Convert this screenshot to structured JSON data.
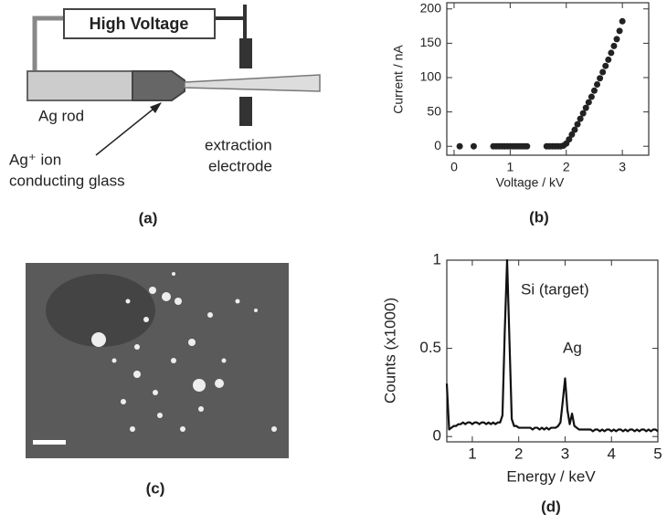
{
  "diagram": {
    "power_label": "High Voltage",
    "rod_label": "Ag rod",
    "glass_label_1": "Ag⁺ ion",
    "glass_label_2": "conducting glass",
    "electrode_label_1": "extraction",
    "electrode_label_2": "electrode",
    "caption": "(a)"
  },
  "image": {
    "caption": "(c)"
  },
  "chart_data": [
    {
      "type": "scatter",
      "caption": "(b)",
      "x_label": "Voltage / kV",
      "y_label": "Current / nA",
      "series": [
        {
          "color": "#222222",
          "x": [
            0.1,
            0.35,
            0.7,
            0.75,
            0.8,
            0.85,
            0.9,
            0.95,
            1.0,
            1.05,
            1.1,
            1.15,
            1.2,
            1.25,
            1.3,
            1.65,
            1.7,
            1.75,
            1.8,
            1.85,
            1.9,
            1.95,
            2.0,
            2.05,
            2.1,
            2.15,
            2.2,
            2.25,
            2.3,
            2.35,
            2.4,
            2.45,
            2.5,
            2.55,
            2.6,
            2.65,
            2.7,
            2.75,
            2.8,
            2.85,
            2.9,
            2.95,
            3.0
          ],
          "values": [
            0,
            0,
            0,
            0,
            0,
            0,
            0,
            0,
            0,
            0,
            0,
            0,
            0,
            0,
            0,
            0,
            0,
            0,
            0,
            0,
            0,
            1,
            4,
            10,
            17,
            24,
            32,
            40,
            48,
            56,
            64,
            72,
            81,
            90,
            99,
            108,
            117,
            126,
            136,
            146,
            156,
            168,
            182
          ]
        }
      ],
      "xlim": [
        -0.13,
        3.47
      ],
      "xticks": [
        0,
        1,
        2,
        3
      ],
      "ylim": [
        -13,
        209
      ],
      "yticks": [
        0,
        50,
        100,
        150,
        200
      ],
      "grid": false
    },
    {
      "type": "line",
      "caption": "(d)",
      "x_label": "Energy / keV",
      "y_label": "Counts (x1000)",
      "annotations": [
        "Si (target)",
        "Ag"
      ],
      "series": [
        {
          "color": "#111111",
          "x": [
            0.45,
            0.5,
            0.55,
            0.6,
            0.65,
            0.7,
            0.75,
            0.8,
            0.85,
            0.9,
            0.95,
            1.0,
            1.05,
            1.1,
            1.15,
            1.2,
            1.25,
            1.3,
            1.35,
            1.4,
            1.45,
            1.5,
            1.55,
            1.6,
            1.65,
            1.7,
            1.75,
            1.8,
            1.85,
            1.9,
            1.95,
            2.0,
            2.05,
            2.1,
            2.15,
            2.2,
            2.25,
            2.3,
            2.35,
            2.4,
            2.45,
            2.5,
            2.55,
            2.6,
            2.65,
            2.7,
            2.75,
            2.8,
            2.85,
            2.9,
            2.95,
            3.0,
            3.05,
            3.1,
            3.15,
            3.2,
            3.25,
            3.3,
            3.35,
            3.4,
            3.45,
            3.5,
            3.55,
            3.6,
            3.65,
            3.7,
            3.75,
            3.8,
            3.85,
            3.9,
            3.95,
            4.0,
            4.05,
            4.1,
            4.15,
            4.2,
            4.25,
            4.3,
            4.35,
            4.4,
            4.45,
            4.5,
            4.55,
            4.6,
            4.65,
            4.7,
            4.75,
            4.8,
            4.85,
            4.9,
            4.95,
            5.0
          ],
          "values": [
            0.3,
            0.04,
            0.05,
            0.06,
            0.06,
            0.07,
            0.07,
            0.08,
            0.07,
            0.08,
            0.08,
            0.07,
            0.08,
            0.08,
            0.07,
            0.08,
            0.08,
            0.07,
            0.08,
            0.07,
            0.08,
            0.07,
            0.08,
            0.08,
            0.12,
            0.6,
            1.0,
            0.55,
            0.1,
            0.06,
            0.06,
            0.05,
            0.05,
            0.05,
            0.05,
            0.05,
            0.05,
            0.04,
            0.05,
            0.05,
            0.04,
            0.05,
            0.04,
            0.05,
            0.04,
            0.05,
            0.05,
            0.05,
            0.06,
            0.08,
            0.2,
            0.33,
            0.15,
            0.07,
            0.13,
            0.06,
            0.05,
            0.04,
            0.04,
            0.04,
            0.04,
            0.04,
            0.04,
            0.03,
            0.04,
            0.04,
            0.03,
            0.04,
            0.03,
            0.04,
            0.04,
            0.03,
            0.04,
            0.03,
            0.04,
            0.04,
            0.03,
            0.04,
            0.03,
            0.04,
            0.04,
            0.03,
            0.04,
            0.03,
            0.04,
            0.04,
            0.03,
            0.04,
            0.03,
            0.04,
            0.04,
            0.03
          ]
        }
      ],
      "xlim": [
        0.45,
        5
      ],
      "xticks": [
        1,
        2,
        3,
        4,
        5
      ],
      "ylim": [
        -0.03,
        1
      ],
      "yticks": [
        0,
        0.5,
        1
      ],
      "grid": false
    }
  ]
}
